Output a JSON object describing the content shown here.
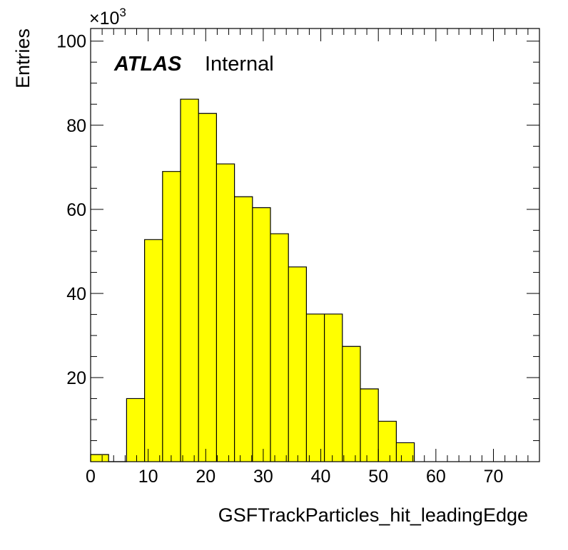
{
  "chart_data": {
    "type": "bar",
    "style": "histogram",
    "xlabel": "GSFTrackParticles_hit_leadingEdge",
    "ylabel": "Entries",
    "y_multiplier_label": "×10",
    "y_multiplier_exponent": "3",
    "experiment_label": "ATLAS",
    "status_label": "Internal",
    "fill_color": "#ffff00",
    "line_color": "#000000",
    "xlim": [
      0,
      78
    ],
    "ylim": [
      0,
      103
    ],
    "x_ticks": [
      0,
      10,
      20,
      30,
      40,
      50,
      60,
      70
    ],
    "x_tick_labels": [
      "0",
      "10",
      "20",
      "30",
      "40",
      "50",
      "60",
      "70"
    ],
    "y_ticks": [
      20,
      40,
      60,
      80,
      100
    ],
    "y_tick_labels": [
      "20",
      "40",
      "60",
      "80",
      "100"
    ],
    "bin_edges": [
      0,
      3.125,
      6.25,
      9.375,
      12.5,
      15.625,
      18.75,
      21.875,
      25,
      28.125,
      31.25,
      34.375,
      37.5,
      40.625,
      43.75,
      46.875,
      50,
      53.125,
      56.25
    ],
    "values": [
      1.7,
      0.0,
      15.0,
      52.8,
      69.0,
      86.2,
      82.8,
      70.8,
      63.0,
      60.4,
      54.2,
      46.3,
      35.1,
      35.1,
      27.4,
      17.3,
      9.6,
      4.5
    ],
    "grid": false,
    "legend": "none"
  }
}
